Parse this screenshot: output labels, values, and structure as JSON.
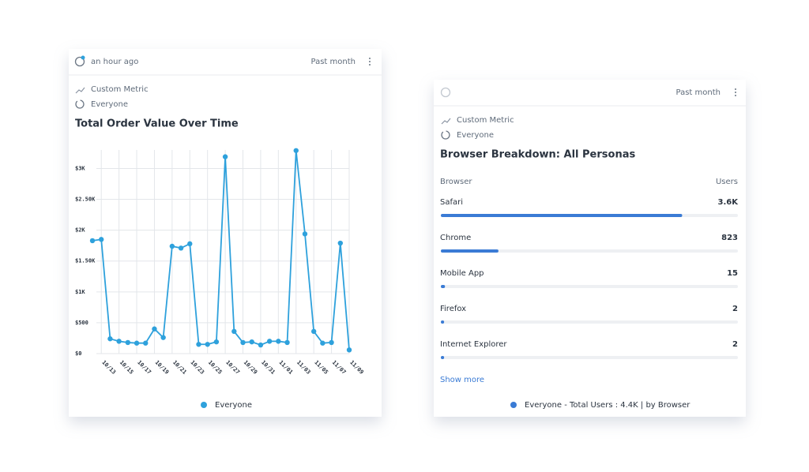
{
  "line_card": {
    "updated": "an hour ago",
    "range": "Past month",
    "metric": "Custom Metric",
    "audience": "Everyone"
  },
  "chart_data": {
    "type": "line",
    "title": "Total Order Value Over Time",
    "x": [
      null,
      "10/13",
      null,
      "10/15",
      null,
      "10/17",
      null,
      "10/19",
      null,
      "10/21",
      null,
      "10/23",
      null,
      "10/25",
      null,
      "10/27",
      null,
      "10/29",
      null,
      "10/31",
      null,
      "11/01",
      null,
      "11/03",
      null,
      "11/05",
      null,
      "11/07",
      null,
      "11/09"
    ],
    "series": [
      {
        "name": "Everyone",
        "color": "#2ea1dc",
        "values": [
          1830,
          1850,
          240,
          200,
          180,
          170,
          170,
          400,
          260,
          1740,
          1710,
          1780,
          150,
          150,
          190,
          3190,
          360,
          180,
          190,
          140,
          200,
          200,
          180,
          3290,
          1940,
          360,
          170,
          180,
          1790,
          60
        ]
      }
    ],
    "ylim": [
      0,
      3300
    ],
    "yticks": [
      {
        "value": 0,
        "label": "$0"
      },
      {
        "value": 500,
        "label": "$500"
      },
      {
        "value": 1000,
        "label": "$1K"
      },
      {
        "value": 1500,
        "label": "$1.50K"
      },
      {
        "value": 2000,
        "label": "$2K"
      },
      {
        "value": 2500,
        "label": "$2.50K"
      },
      {
        "value": 3000,
        "label": "$3K"
      }
    ],
    "grid": true
  },
  "browser_card": {
    "range": "Past month",
    "metric": "Custom Metric",
    "audience": "Everyone",
    "title": "Browser Breakdown: All Personas",
    "column_labels": [
      "Browser",
      "Users"
    ],
    "color": "#3a7bd5",
    "rows": [
      {
        "name": "Safari",
        "value": 3600,
        "label": "3.6K"
      },
      {
        "name": "Chrome",
        "value": 823,
        "label": "823"
      },
      {
        "name": "Mobile App",
        "value": 15,
        "label": "15"
      },
      {
        "name": "Firefox",
        "value": 2,
        "label": "2"
      },
      {
        "name": "Internet Explorer",
        "value": 2,
        "label": "2"
      }
    ],
    "show_more": "Show more",
    "legend": "Everyone - Total Users : 4.4K | by Browser"
  }
}
